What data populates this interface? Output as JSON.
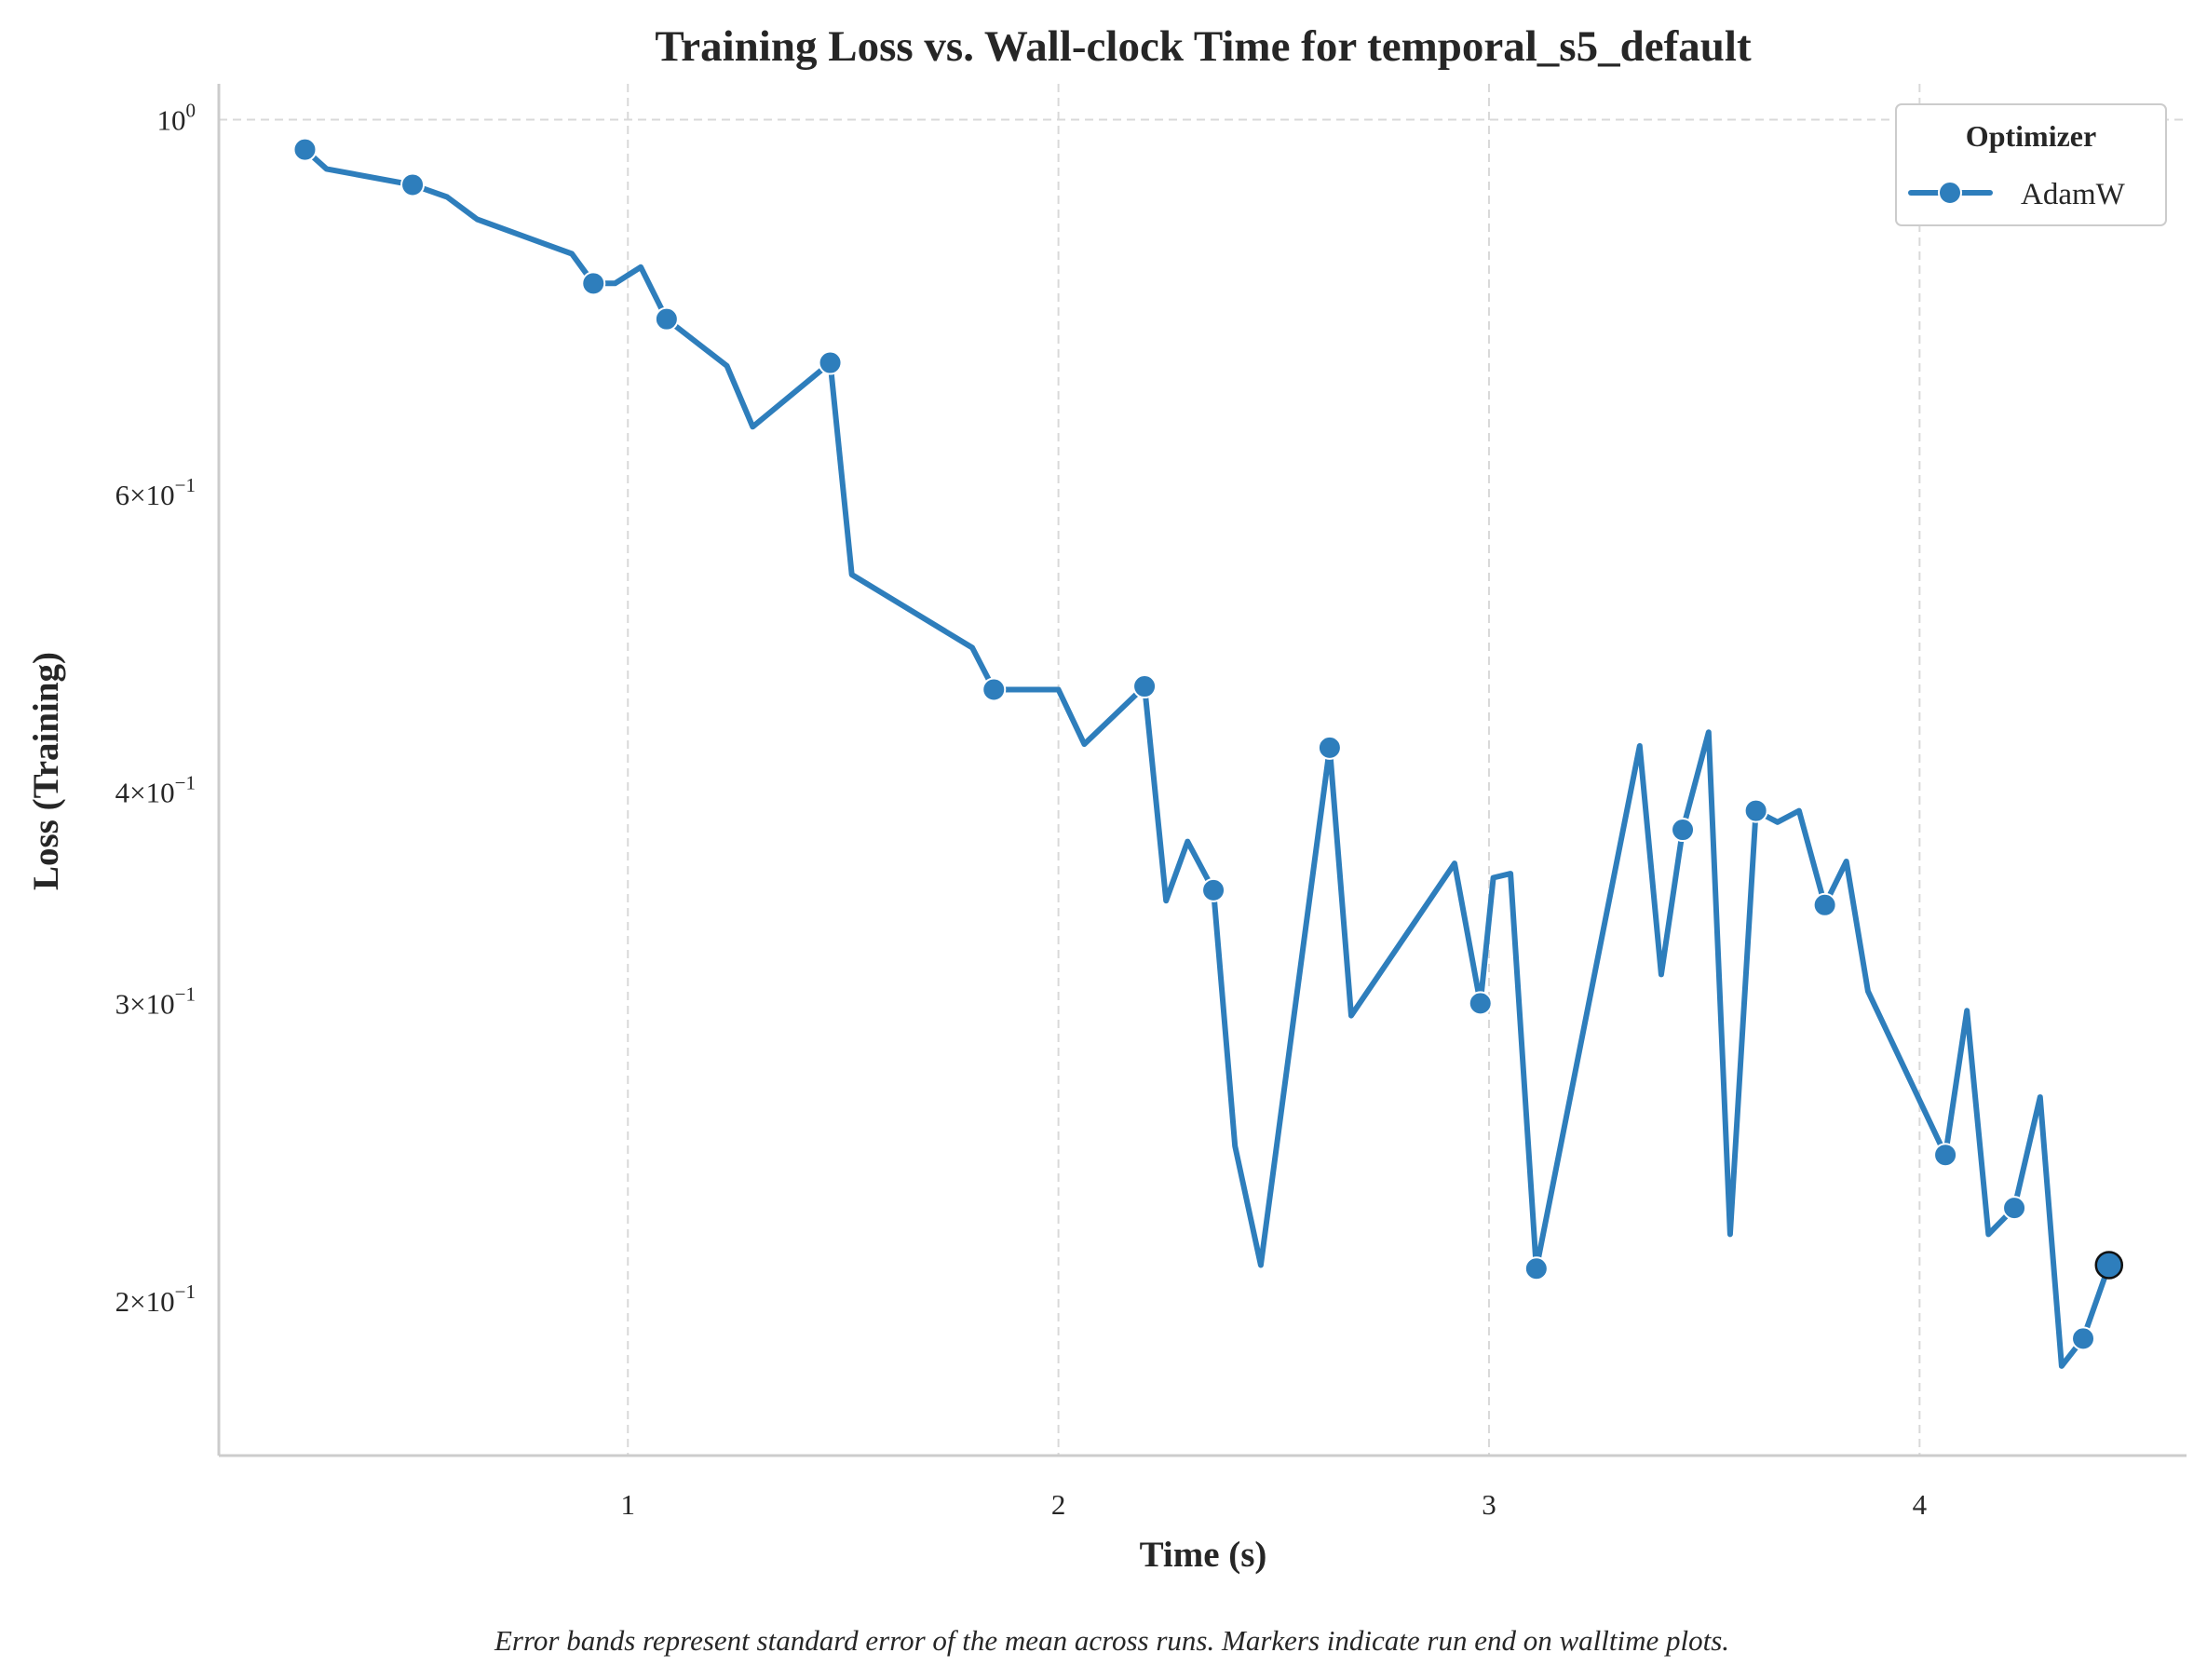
{
  "chart_data": {
    "type": "line",
    "title": "Training Loss vs. Wall-clock Time for temporal_s5_default",
    "xlabel": "Time (s)",
    "ylabel": "Loss (Training)",
    "xlim": [
      0.05,
      4.62
    ],
    "ylim": [
      0.162,
      1.05
    ],
    "yscale": "log",
    "grid": true,
    "x_ticks": [
      {
        "value": 1,
        "label": "1"
      },
      {
        "value": 2,
        "label": "2"
      },
      {
        "value": 3,
        "label": "3"
      },
      {
        "value": 4,
        "label": "4"
      }
    ],
    "y_ticks": [
      {
        "value": 1.0,
        "mantissa": "",
        "exponent": "0"
      },
      {
        "value": 0.6,
        "mantissa": "6",
        "exponent": "−1"
      },
      {
        "value": 0.4,
        "mantissa": "4",
        "exponent": "−1"
      },
      {
        "value": 0.3,
        "mantissa": "3",
        "exponent": "−1"
      },
      {
        "value": 0.2,
        "mantissa": "2",
        "exponent": "−1"
      }
    ],
    "legend": {
      "title": "Optimizer",
      "position": "top-right"
    },
    "series": [
      {
        "name": "AdamW",
        "color": "#2e7ebc",
        "x": [
          0.25,
          0.3,
          0.5,
          0.58,
          0.65,
          0.87,
          0.92,
          0.97,
          1.03,
          1.09,
          1.23,
          1.29,
          1.47,
          1.52,
          1.8,
          1.85,
          2.0,
          2.06,
          2.2,
          2.25,
          2.3,
          2.36,
          2.41,
          2.47,
          2.63,
          2.68,
          2.92,
          2.98,
          3.01,
          3.05,
          3.11,
          3.35,
          3.4,
          3.45,
          3.51,
          3.56,
          3.62,
          3.67,
          3.72,
          3.78,
          3.83,
          3.88,
          4.06,
          4.11,
          4.16,
          4.22,
          4.28,
          4.33,
          4.38,
          4.44
        ],
        "y": [
          0.96,
          0.935,
          0.915,
          0.9,
          0.873,
          0.833,
          0.8,
          0.8,
          0.818,
          0.762,
          0.715,
          0.658,
          0.718,
          0.538,
          0.487,
          0.46,
          0.46,
          0.427,
          0.462,
          0.345,
          0.374,
          0.35,
          0.247,
          0.21,
          0.425,
          0.295,
          0.363,
          0.3,
          0.356,
          0.358,
          0.209,
          0.426,
          0.312,
          0.38,
          0.434,
          0.219,
          0.39,
          0.384,
          0.39,
          0.343,
          0.364,
          0.305,
          0.244,
          0.297,
          0.219,
          0.227,
          0.264,
          0.183,
          0.19,
          0.21
        ],
        "marker_indices": [
          0,
          2,
          6,
          9,
          12,
          15,
          18,
          21,
          24,
          27,
          30,
          33,
          36,
          39,
          42,
          45,
          48,
          49
        ],
        "end_marker_index": 49
      }
    ],
    "caption": "Error bands represent standard error of the mean across runs. Markers indicate run end on walltime plots."
  }
}
